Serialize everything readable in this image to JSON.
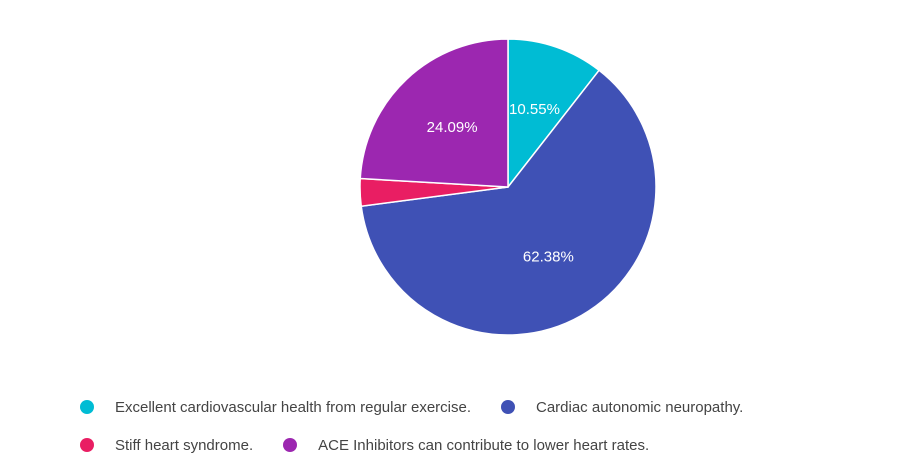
{
  "chart_data": {
    "type": "pie",
    "title": "",
    "slices": [
      {
        "label": "Excellent cardiovascular health from regular exercise.",
        "value": 10.55,
        "display": "10.55%",
        "color": "#00bcd4"
      },
      {
        "label": "Cardiac autonomic neuropathy.",
        "value": 62.38,
        "display": "62.38%",
        "color": "#3f51b5"
      },
      {
        "label": "Stiff heart syndrome.",
        "value": 2.98,
        "display": "",
        "color": "#e91e63"
      },
      {
        "label": "ACE Inhibitors can contribute to lower heart rates.",
        "value": 24.09,
        "display": "24.09%",
        "color": "#9c27b0"
      }
    ],
    "legend_position": "bottom",
    "start_angle_deg": 0,
    "direction": "clockwise"
  },
  "legend": {
    "rows": [
      [
        0,
        1
      ],
      [
        2,
        3
      ]
    ]
  }
}
